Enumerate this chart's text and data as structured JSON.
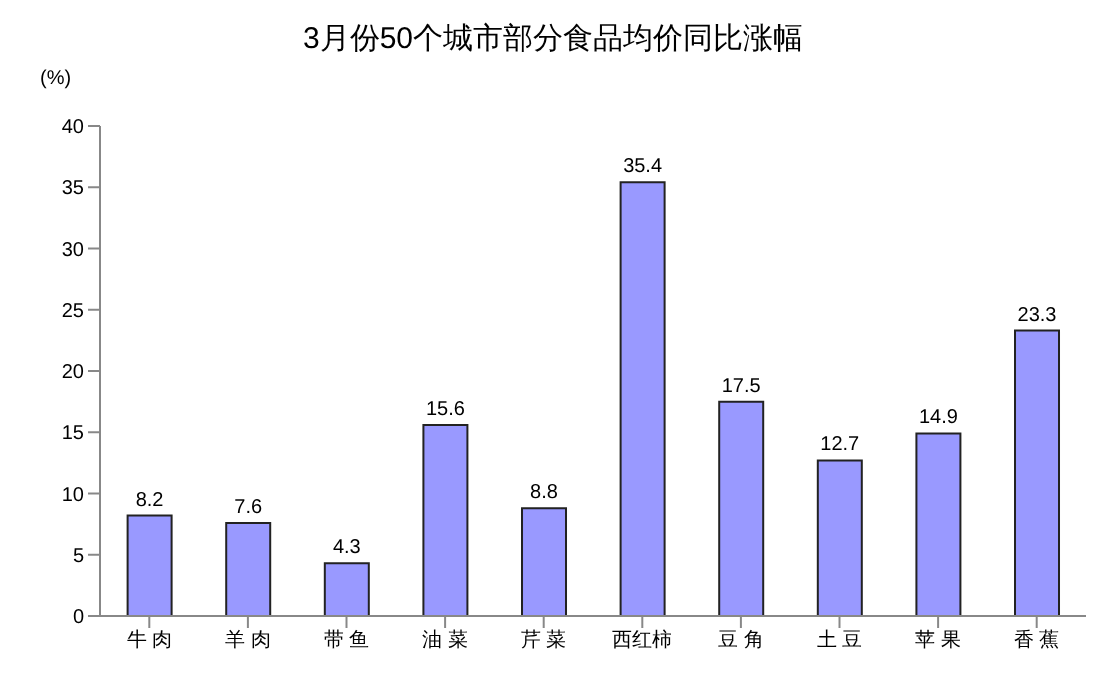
{
  "chart_data": {
    "type": "bar",
    "title": "3月份50个城市部分食品均价同比涨幅",
    "ylabel": "(%)",
    "categories": [
      "牛 肉",
      "羊 肉",
      "带 鱼",
      "油 菜",
      "芹 菜",
      "西红柿",
      "豆 角",
      "土 豆",
      "苹 果",
      "香 蕉"
    ],
    "values": [
      8.2,
      7.6,
      4.3,
      15.6,
      8.8,
      35.4,
      17.5,
      12.7,
      14.9,
      23.3
    ],
    "color": "#9999ff",
    "ylim": [
      0,
      40
    ],
    "yticks": [
      0,
      5,
      10,
      15,
      20,
      25,
      30,
      35,
      40
    ],
    "data_labels": true,
    "grid": false,
    "legend": false
  }
}
